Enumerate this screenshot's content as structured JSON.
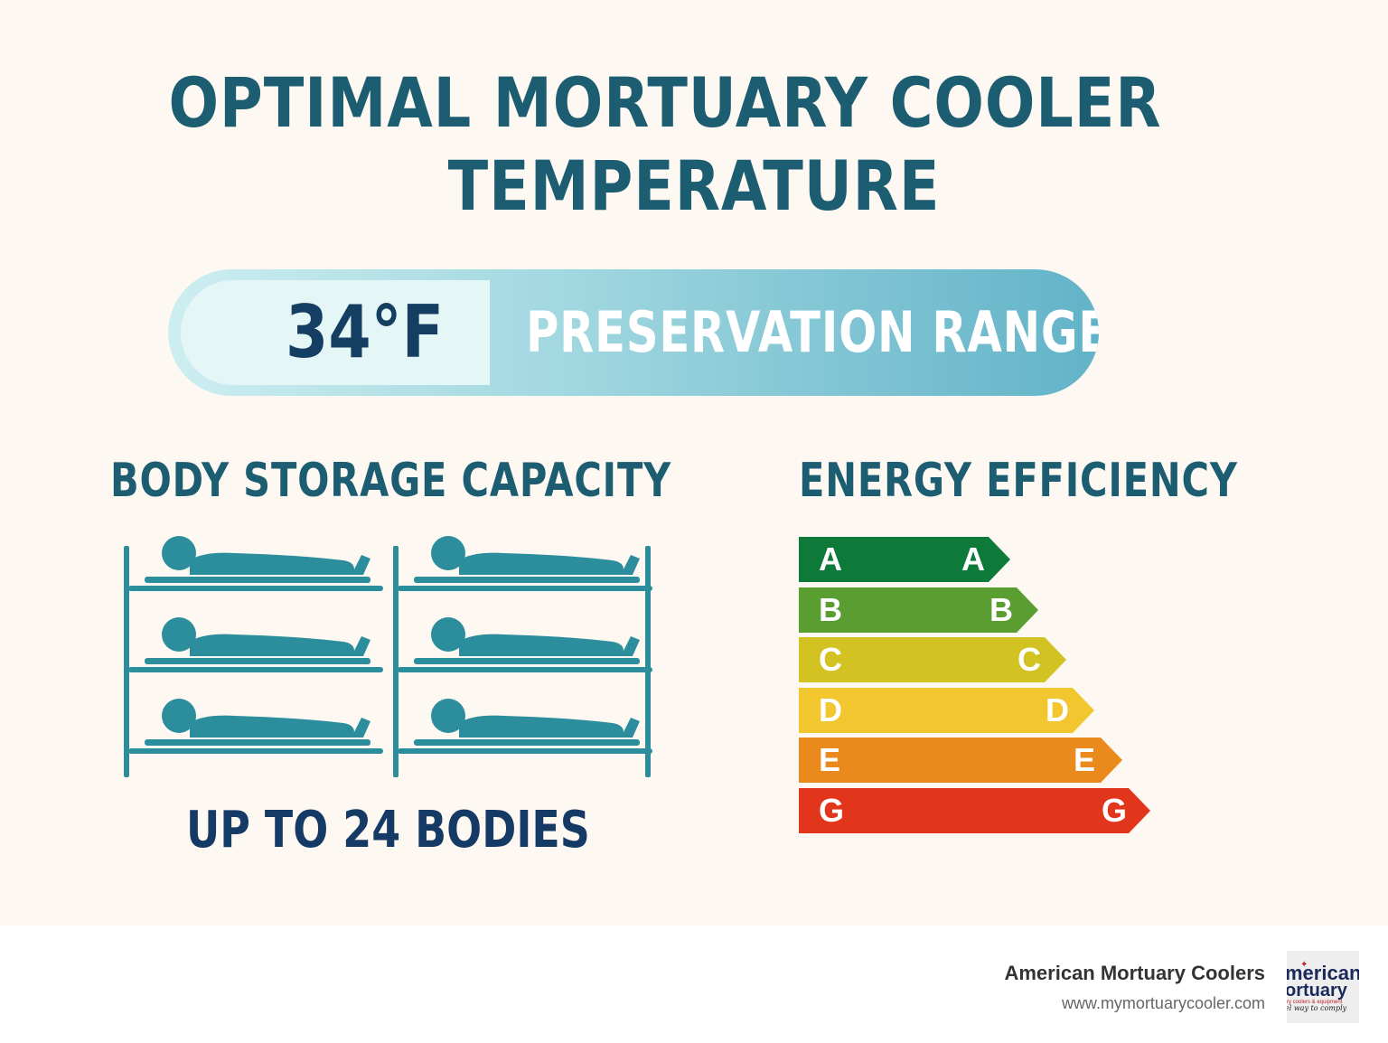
{
  "title": {
    "line1": "OPTIMAL MORTUARY COOLER",
    "line2": "TEMPERATURE"
  },
  "temperature": {
    "value": "34°F",
    "label": "PRESERVATION RANGE"
  },
  "storage": {
    "heading": "BODY STORAGE CAPACITY",
    "caption": "UP TO 24 BODIES",
    "racks_shown": 2,
    "shelves_per_rack": 3,
    "color": "#2c8e9c"
  },
  "energy": {
    "heading": "ENERGY EFFICIENCY",
    "grades": [
      {
        "letter": "A",
        "color": "#0e7a3a"
      },
      {
        "letter": "B",
        "color": "#5a9e32"
      },
      {
        "letter": "C",
        "color": "#d3c322"
      },
      {
        "letter": "D",
        "color": "#f2c62e"
      },
      {
        "letter": "E",
        "color": "#ea8a1d"
      },
      {
        "letter": "G",
        "color": "#e2361c"
      }
    ]
  },
  "footer": {
    "company": "American Mortuary Coolers",
    "website": "www.mymortuarycooler.com",
    "logo_text": [
      "merican",
      "ortuary",
      "ry coolers & equipment",
      "el way to comply"
    ]
  },
  "colors": {
    "heading": "#1d5d72",
    "caption": "#163a66",
    "background": "#fdf9f2"
  }
}
